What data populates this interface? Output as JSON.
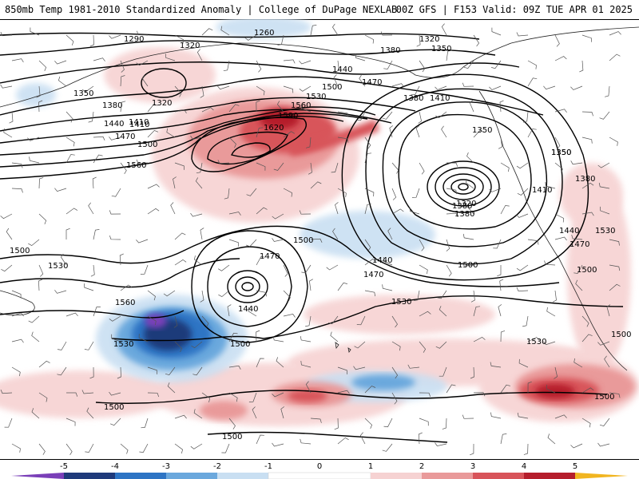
{
  "header": {
    "left_title": "850mb Temp 1981-2010 Standardized Anomaly | College of DuPage NEXLAB",
    "right_title": "00Z GFS | F153 Valid: 09Z TUE APR 01 2025"
  },
  "colors": {
    "anom_neg5": "#7a3fb8",
    "anom_neg4": "#1f3a7a",
    "anom_neg3": "#2d74c4",
    "anom_neg2": "#6ba8dd",
    "anom_neg1": "#c9dff2",
    "anom_pos1": "#f6d2d2",
    "anom_pos2": "#e99a9a",
    "anom_pos3": "#d8545a",
    "anom_pos4": "#b51e2c",
    "anom_pos5": "#7a0d18",
    "anom_pos_max": "#f1b520",
    "contour": "#000000"
  },
  "colorbar": {
    "labels": [
      "-5",
      "-4",
      "-3",
      "-2",
      "-1",
      "0",
      "1",
      "2",
      "3",
      "4",
      "5"
    ]
  },
  "contour_labels": [
    "1290",
    "1260",
    "1320",
    "1320",
    "1350",
    "1380",
    "1350",
    "1380",
    "1410",
    "1440",
    "1470",
    "1500",
    "1530",
    "1560",
    "1590",
    "1620",
    "1440",
    "1410",
    "1470",
    "1500",
    "1350",
    "1380",
    "1320",
    "1350",
    "1380",
    "1410",
    "1560",
    "1500",
    "1530",
    "1500",
    "1470",
    "1440",
    "1380",
    "1350",
    "1410",
    "1380",
    "1320",
    "1440",
    "1470",
    "1500",
    "1500",
    "1530",
    "1560",
    "1470",
    "1440",
    "1500",
    "1530",
    "1530",
    "1500",
    "1500",
    "1500",
    "1500",
    "1530"
  ]
}
